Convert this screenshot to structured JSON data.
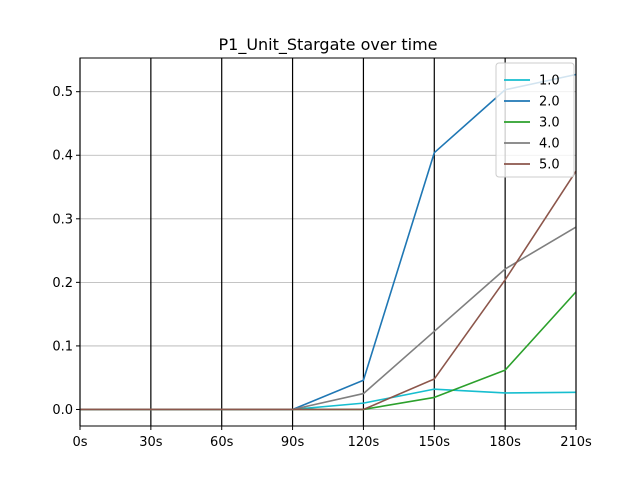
{
  "chart_data": {
    "type": "line",
    "title": "P1_Unit_Stargate over time",
    "xlabel": "",
    "ylabel": "",
    "x": [
      0,
      30,
      60,
      90,
      120,
      150,
      180,
      210
    ],
    "x_tick_labels": [
      "0s",
      "30s",
      "60s",
      "90s",
      "120s",
      "150s",
      "180s",
      "210s"
    ],
    "xlim": [
      0,
      210
    ],
    "ylim": [
      -0.026,
      0.553
    ],
    "y_ticks": [
      0.0,
      0.1,
      0.2,
      0.3,
      0.4,
      0.5
    ],
    "y_tick_labels": [
      "0.0",
      "0.1",
      "0.2",
      "0.3",
      "0.4",
      "0.5"
    ],
    "grid": "horizontal lines at y ticks; black vertical lines at x ticks",
    "legend_position": "top-right",
    "series": [
      {
        "name": "1.0",
        "color": "#17becf",
        "values": [
          0,
          0,
          0,
          0,
          0.01,
          0.032,
          0.026,
          0.027
        ]
      },
      {
        "name": "2.0",
        "color": "#1f77b4",
        "values": [
          0,
          0,
          0,
          0,
          0.046,
          0.404,
          0.503,
          0.527
        ]
      },
      {
        "name": "3.0",
        "color": "#2ca02c",
        "values": [
          0,
          0,
          0,
          0,
          0,
          0.019,
          0.062,
          0.185
        ]
      },
      {
        "name": "4.0",
        "color": "#7f7f7f",
        "values": [
          0,
          0,
          0,
          0,
          0.025,
          0.123,
          0.221,
          0.287
        ]
      },
      {
        "name": "5.0",
        "color": "#8c564b",
        "values": [
          0,
          0,
          0,
          0,
          0,
          0.048,
          0.204,
          0.375
        ]
      }
    ]
  }
}
